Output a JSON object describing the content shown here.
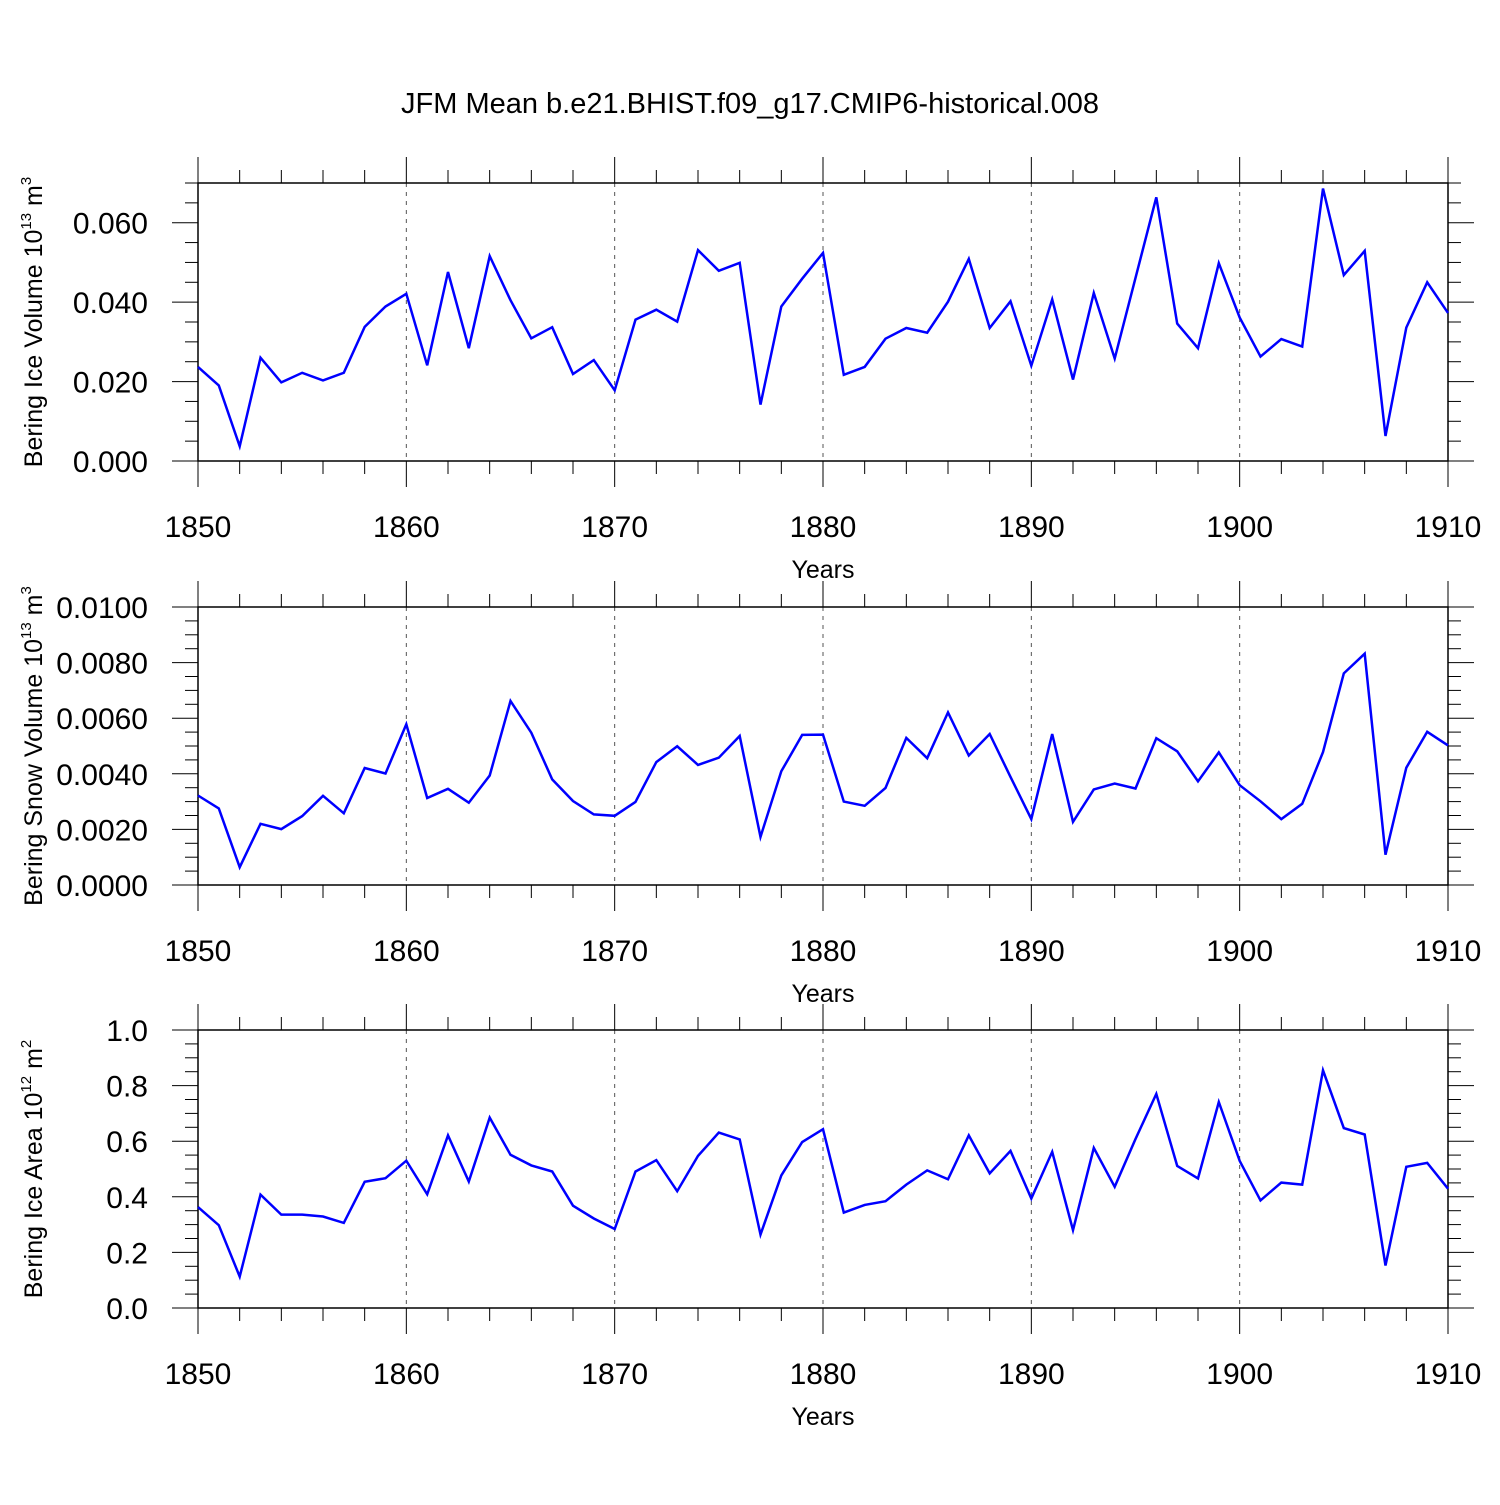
{
  "figure": {
    "title": "JFM Mean b.e21.BHIST.f09_g17.CMIP6-historical.008"
  },
  "chart_data": [
    {
      "type": "line",
      "title": "",
      "xlabel": "Years",
      "ylabel": {
        "base": "Bering Ice Volume 10",
        "exp1": "13",
        "unit": " m",
        "exp2": "3"
      },
      "xlim": [
        1850,
        1910
      ],
      "ylim": [
        0.0,
        0.07
      ],
      "x_ticks": [
        1850,
        1860,
        1870,
        1880,
        1890,
        1900,
        1910
      ],
      "x_tick_labels": [
        "1850",
        "1860",
        "1870",
        "1880",
        "1890",
        "1900",
        "1910"
      ],
      "y_ticks": [
        0.0,
        0.02,
        0.04,
        0.06
      ],
      "y_tick_labels": [
        "0.000",
        "0.020",
        "0.040",
        "0.060"
      ],
      "y_minor_step": 0.005,
      "line_color": "#0000ff",
      "series": [
        {
          "name": "Bering Ice Volume",
          "x": [
            1850,
            1851,
            1852,
            1853,
            1854,
            1855,
            1856,
            1857,
            1858,
            1859,
            1860,
            1861,
            1862,
            1863,
            1864,
            1865,
            1866,
            1867,
            1868,
            1869,
            1870,
            1871,
            1872,
            1873,
            1874,
            1875,
            1876,
            1877,
            1878,
            1879,
            1880,
            1881,
            1882,
            1883,
            1884,
            1885,
            1886,
            1887,
            1888,
            1889,
            1890,
            1891,
            1892,
            1893,
            1894,
            1895,
            1896,
            1897,
            1898,
            1899,
            1900,
            1901,
            1902,
            1903,
            1904,
            1905,
            1906,
            1907,
            1908,
            1909,
            1910
          ],
          "values": [
            0.0237,
            0.019,
            0.0037,
            0.026,
            0.0198,
            0.0222,
            0.0203,
            0.0222,
            0.0338,
            0.0389,
            0.0421,
            0.0241,
            0.0476,
            0.0284,
            0.0516,
            0.0405,
            0.0309,
            0.0337,
            0.0219,
            0.0254,
            0.0178,
            0.0356,
            0.0381,
            0.0351,
            0.0531,
            0.0479,
            0.0499,
            0.0142,
            0.0389,
            0.0459,
            0.0524,
            0.0217,
            0.0237,
            0.0308,
            0.0335,
            0.0323,
            0.0401,
            0.0509,
            0.0335,
            0.0402,
            0.024,
            0.0407,
            0.0205,
            0.0423,
            0.0258,
            0.0461,
            0.0664,
            0.0346,
            0.0284,
            0.0498,
            0.0361,
            0.0263,
            0.0307,
            0.0288,
            0.0686,
            0.0468,
            0.0529,
            0.0063,
            0.0336,
            0.045,
            0.0373
          ]
        }
      ]
    },
    {
      "type": "line",
      "title": "",
      "xlabel": "Years",
      "ylabel": {
        "base": "Bering Snow Volume 10",
        "exp1": "13",
        "unit": " m",
        "exp2": "3"
      },
      "xlim": [
        1850,
        1910
      ],
      "ylim": [
        0.0,
        0.01
      ],
      "x_ticks": [
        1850,
        1860,
        1870,
        1880,
        1890,
        1900,
        1910
      ],
      "x_tick_labels": [
        "1850",
        "1860",
        "1870",
        "1880",
        "1890",
        "1900",
        "1910"
      ],
      "y_ticks": [
        0.0,
        0.002,
        0.004,
        0.006,
        0.008,
        0.01
      ],
      "y_tick_labels": [
        "0.0000",
        "0.0020",
        "0.0040",
        "0.0060",
        "0.0080",
        "0.0100"
      ],
      "y_minor_step": 0.0005,
      "line_color": "#0000ff",
      "series": [
        {
          "name": "Bering Snow Volume",
          "x": [
            1850,
            1851,
            1852,
            1853,
            1854,
            1855,
            1856,
            1857,
            1858,
            1859,
            1860,
            1861,
            1862,
            1863,
            1864,
            1865,
            1866,
            1867,
            1868,
            1869,
            1870,
            1871,
            1872,
            1873,
            1874,
            1875,
            1876,
            1877,
            1878,
            1879,
            1880,
            1881,
            1882,
            1883,
            1884,
            1885,
            1886,
            1887,
            1888,
            1889,
            1890,
            1891,
            1892,
            1893,
            1894,
            1895,
            1896,
            1897,
            1898,
            1899,
            1900,
            1901,
            1902,
            1903,
            1904,
            1905,
            1906,
            1907,
            1908,
            1909,
            1910
          ],
          "values": [
            0.00322,
            0.00275,
            0.00064,
            0.0022,
            0.00201,
            0.00248,
            0.00321,
            0.00258,
            0.00421,
            0.00401,
            0.00578,
            0.00313,
            0.00346,
            0.00296,
            0.00394,
            0.00662,
            0.00548,
            0.0038,
            0.00302,
            0.00254,
            0.00249,
            0.00299,
            0.00442,
            0.00499,
            0.00432,
            0.00458,
            0.00536,
            0.00173,
            0.00409,
            0.0054,
            0.00541,
            0.003,
            0.00285,
            0.00349,
            0.00529,
            0.00456,
            0.00621,
            0.00466,
            0.00543,
            0.00389,
            0.00237,
            0.00543,
            0.00227,
            0.00344,
            0.00365,
            0.00347,
            0.00528,
            0.00481,
            0.00373,
            0.00477,
            0.00359,
            0.00301,
            0.00237,
            0.00292,
            0.00478,
            0.00761,
            0.00832,
            0.00109,
            0.00422,
            0.00551,
            0.00502
          ]
        }
      ]
    },
    {
      "type": "line",
      "title": "",
      "xlabel": "Years",
      "ylabel": {
        "base": "Bering Ice Area 10",
        "exp1": "12",
        "unit": " m",
        "exp2": "2"
      },
      "xlim": [
        1850,
        1910
      ],
      "ylim": [
        0.0,
        1.0
      ],
      "x_ticks": [
        1850,
        1860,
        1870,
        1880,
        1890,
        1900,
        1910
      ],
      "x_tick_labels": [
        "1850",
        "1860",
        "1870",
        "1880",
        "1890",
        "1900",
        "1910"
      ],
      "y_ticks": [
        0.0,
        0.2,
        0.4,
        0.6,
        0.8,
        1.0
      ],
      "y_tick_labels": [
        "0.0",
        "0.2",
        "0.4",
        "0.6",
        "0.8",
        "1.0"
      ],
      "y_minor_step": 0.05,
      "line_color": "#0000ff",
      "series": [
        {
          "name": "Bering Ice Area",
          "x": [
            1850,
            1851,
            1852,
            1853,
            1854,
            1855,
            1856,
            1857,
            1858,
            1859,
            1860,
            1861,
            1862,
            1863,
            1864,
            1865,
            1866,
            1867,
            1868,
            1869,
            1870,
            1871,
            1872,
            1873,
            1874,
            1875,
            1876,
            1877,
            1878,
            1879,
            1880,
            1881,
            1882,
            1883,
            1884,
            1885,
            1886,
            1887,
            1888,
            1889,
            1890,
            1891,
            1892,
            1893,
            1894,
            1895,
            1896,
            1897,
            1898,
            1899,
            1900,
            1901,
            1902,
            1903,
            1904,
            1905,
            1906,
            1907,
            1908,
            1909,
            1910
          ],
          "values": [
            0.363,
            0.298,
            0.113,
            0.408,
            0.336,
            0.336,
            0.329,
            0.306,
            0.454,
            0.467,
            0.53,
            0.409,
            0.621,
            0.455,
            0.685,
            0.551,
            0.513,
            0.491,
            0.368,
            0.322,
            0.284,
            0.491,
            0.532,
            0.42,
            0.547,
            0.631,
            0.606,
            0.264,
            0.477,
            0.597,
            0.643,
            0.343,
            0.371,
            0.384,
            0.444,
            0.495,
            0.463,
            0.621,
            0.484,
            0.565,
            0.394,
            0.562,
            0.28,
            0.576,
            0.436,
            0.608,
            0.77,
            0.511,
            0.466,
            0.741,
            0.529,
            0.387,
            0.451,
            0.444,
            0.855,
            0.647,
            0.624,
            0.153,
            0.508,
            0.522,
            0.429
          ]
        }
      ]
    }
  ]
}
